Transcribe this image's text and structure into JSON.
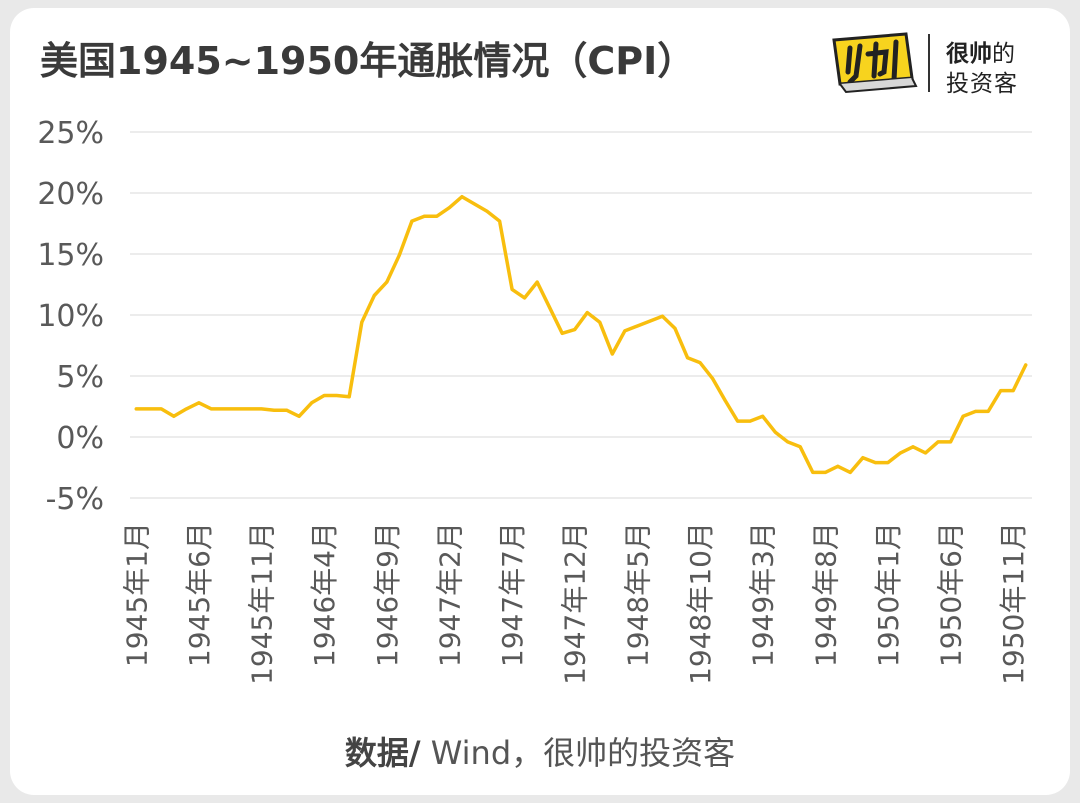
{
  "title": "美国1945~1950年通胀情况（CPI）",
  "brand": {
    "logo_icon": "shuai-logo-icon",
    "logo_color": "#F7D31E",
    "name_line1_bold": "很帅",
    "name_line1_rest": "的",
    "name_line2": "投资客"
  },
  "source": {
    "label": "数据/",
    "text": " Wind，很帅的投资客"
  },
  "chart_data": {
    "type": "line",
    "color": "#F8BE0E",
    "ylim": [
      -5,
      25
    ],
    "yticks": [
      -5,
      0,
      5,
      10,
      15,
      20,
      25
    ],
    "ytick_labels": [
      "-5%",
      "0%",
      "5%",
      "10%",
      "15%",
      "20%",
      "25%"
    ],
    "grid": true,
    "x_tick_labels": [
      "1945年1月",
      "1945年6月",
      "1945年11月",
      "1946年4月",
      "1946年9月",
      "1947年2月",
      "1947年7月",
      "1947年12月",
      "1948年5月",
      "1948年10月",
      "1949年3月",
      "1949年8月",
      "1950年1月",
      "1950年6月",
      "1950年11月"
    ],
    "x_tick_every": 5,
    "categories": [
      "1945年1月",
      "1945年2月",
      "1945年3月",
      "1945年4月",
      "1945年5月",
      "1945年6月",
      "1945年7月",
      "1945年8月",
      "1945年9月",
      "1945年10月",
      "1945年11月",
      "1945年12月",
      "1946年1月",
      "1946年2月",
      "1946年3月",
      "1946年4月",
      "1946年5月",
      "1946年6月",
      "1946年7月",
      "1946年8月",
      "1946年9月",
      "1946年10月",
      "1946年11月",
      "1946年12月",
      "1947年1月",
      "1947年2月",
      "1947年3月",
      "1947年4月",
      "1947年5月",
      "1947年6月",
      "1947年7月",
      "1947年8月",
      "1947年9月",
      "1947年10月",
      "1947年11月",
      "1947年12月",
      "1948年1月",
      "1948年2月",
      "1948年3月",
      "1948年4月",
      "1948年5月",
      "1948年6月",
      "1948年7月",
      "1948年8月",
      "1948年9月",
      "1948年10月",
      "1948年11月",
      "1948年12月",
      "1949年1月",
      "1949年2月",
      "1949年3月",
      "1949年4月",
      "1949年5月",
      "1949年6月",
      "1949年7月",
      "1949年8月",
      "1949年9月",
      "1949年10月",
      "1949年11月",
      "1949年12月",
      "1950年1月",
      "1950年2月",
      "1950年3月",
      "1950年4月",
      "1950年5月",
      "1950年6月",
      "1950年7月",
      "1950年8月",
      "1950年9月",
      "1950年10月",
      "1950年11月",
      "1950年12月"
    ],
    "values": [
      2.3,
      2.3,
      2.3,
      1.7,
      2.3,
      2.8,
      2.3,
      2.3,
      2.3,
      2.3,
      2.3,
      2.2,
      2.2,
      1.7,
      2.8,
      3.4,
      3.4,
      3.3,
      9.4,
      11.6,
      12.7,
      14.9,
      17.7,
      18.1,
      18.1,
      18.8,
      19.7,
      19.1,
      18.5,
      17.7,
      12.1,
      11.4,
      12.7,
      10.6,
      8.5,
      8.8,
      10.2,
      9.4,
      6.8,
      8.7,
      9.1,
      9.5,
      9.9,
      8.9,
      6.5,
      6.1,
      4.8,
      3.0,
      1.3,
      1.3,
      1.7,
      0.4,
      -0.4,
      -0.8,
      -2.9,
      -2.9,
      -2.4,
      -2.9,
      -1.7,
      -2.1,
      -2.1,
      -1.3,
      -0.8,
      -1.3,
      -0.4,
      -0.4,
      1.7,
      2.1,
      2.1,
      3.8,
      3.8,
      5.9
    ]
  }
}
